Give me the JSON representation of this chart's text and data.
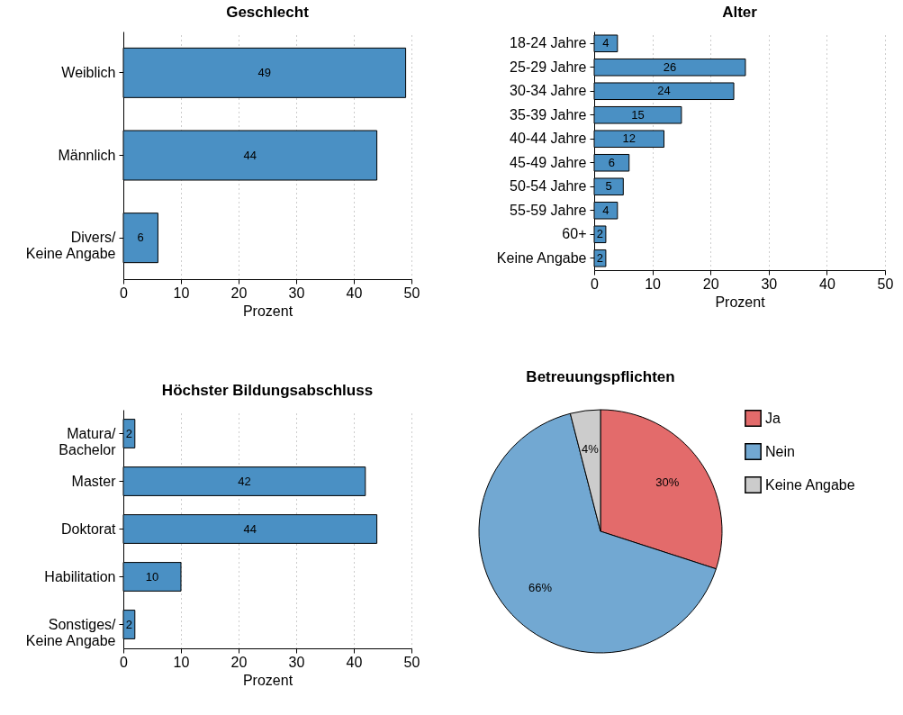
{
  "chart_data": [
    {
      "type": "bar",
      "orientation": "horizontal",
      "title": "Geschlecht",
      "xlabel": "Prozent",
      "categories": [
        "Weiblich",
        "Männlich",
        "Divers/\nKeine Angabe"
      ],
      "values": [
        49,
        44,
        6
      ],
      "color": "#4a90c4",
      "xlim": [
        0,
        50
      ],
      "xticks": [
        0,
        10,
        20,
        30,
        40,
        50
      ],
      "grid": "x",
      "data_labels": true
    },
    {
      "type": "bar",
      "orientation": "horizontal",
      "title": "Alter",
      "xlabel": "Prozent",
      "categories": [
        "18-24 Jahre",
        "25-29 Jahre",
        "30-34 Jahre",
        "35-39 Jahre",
        "40-44 Jahre",
        "45-49 Jahre",
        "50-54 Jahre",
        "55-59 Jahre",
        "60+",
        "Keine Angabe"
      ],
      "values": [
        4,
        26,
        24,
        15,
        12,
        6,
        5,
        4,
        2,
        2
      ],
      "color": "#4a90c4",
      "xlim": [
        0,
        50
      ],
      "xticks": [
        0,
        10,
        20,
        30,
        40,
        50
      ],
      "grid": "x",
      "data_labels": true
    },
    {
      "type": "bar",
      "orientation": "horizontal",
      "title": "Höchster Bildungsabschluss",
      "xlabel": "Prozent",
      "categories": [
        "Matura/\nBachelor",
        "Master",
        "Doktorat",
        "Habilitation",
        "Sonstiges/\nKeine Angabe"
      ],
      "values": [
        2,
        42,
        44,
        10,
        2
      ],
      "color": "#4a90c4",
      "xlim": [
        0,
        50
      ],
      "xticks": [
        0,
        10,
        20,
        30,
        40,
        50
      ],
      "grid": "x",
      "data_labels": true
    },
    {
      "type": "pie",
      "title": "Betreuungspflichten",
      "categories": [
        "Ja",
        "Nein",
        "Keine Angabe"
      ],
      "values": [
        30,
        66,
        4
      ],
      "colors": [
        "#e36b6b",
        "#72a8d2",
        "#cccccc"
      ],
      "value_labels": [
        "30%",
        "66%",
        "4%"
      ],
      "legend": "right"
    }
  ]
}
